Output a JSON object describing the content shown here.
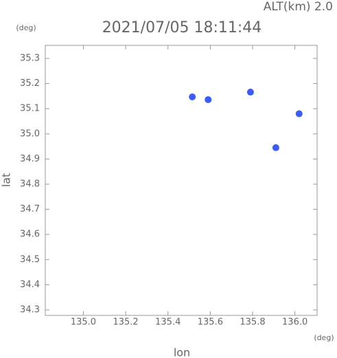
{
  "chart_data": {
    "type": "scatter",
    "title": "2021/07/05 18:11:44",
    "subtitle": "ALT(km) 2.0",
    "x_unit": "(deg)",
    "y_unit": "(deg)",
    "xlabel": "lon",
    "ylabel": "lat",
    "color": "#3b5bff",
    "x": [
      135.515,
      135.59,
      135.79,
      136.02,
      135.91
    ],
    "values": [
      35.147,
      35.136,
      35.166,
      35.08,
      34.945
    ],
    "xlim": [
      134.82,
      136.105
    ],
    "ylim": [
      34.278,
      35.352
    ],
    "xticks": [
      {
        "value": 135,
        "label": "135.0"
      },
      135.2,
      135.4,
      135.6,
      135.8,
      {
        "value": 136,
        "label": "136.0"
      }
    ],
    "yticks": [
      34.3,
      34.4,
      34.5,
      34.6,
      34.7,
      34.8,
      34.9,
      {
        "value": 35,
        "label": "35.0"
      },
      35.1,
      35.2,
      35.3
    ]
  }
}
